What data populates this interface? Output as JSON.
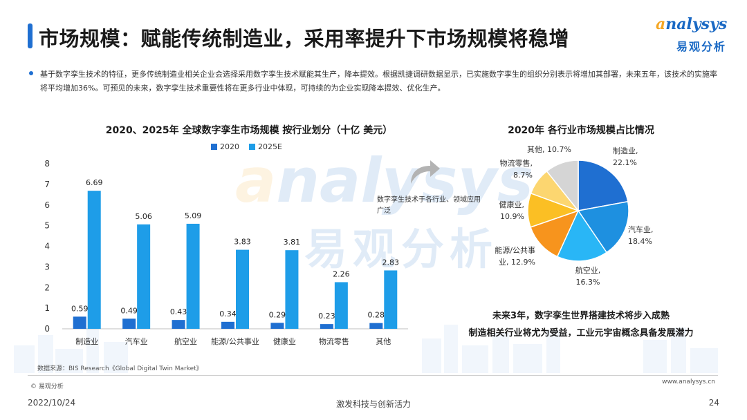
{
  "header": {
    "title": "市场规模：赋能传统制造业，采用率提升下市场规模将稳增"
  },
  "logo": {
    "brand_en_a": "a",
    "brand_en_rest": "nalysys",
    "brand_cn": "易观分析"
  },
  "intro": {
    "text": "基于数字孪生技术的特征，更多传统制造业相关企业会选择采用数字孪生技术赋能其生产，降本提效。根据凯捷调研数据显示，已实施数字孪生的组织分别表示将增加其部署，未来五年，该技术的实施率将平均增加36%。可预见的未来，数字孪生技术重要性将在更多行业中体现，可持续的为企业实现降本提效、优化生产。"
  },
  "chart_data": [
    {
      "type": "bar",
      "title": "2020、2025年 全球数字孪生市场规模 按行业划分（十亿 美元）",
      "categories": [
        "制造业",
        "汽车业",
        "航空业",
        "能源/公共事业",
        "健康业",
        "物流零售",
        "其他"
      ],
      "series": [
        {
          "name": "2020",
          "values": [
            0.59,
            0.49,
            0.43,
            0.34,
            0.29,
            0.23,
            0.28
          ],
          "color": "#1f6fd1"
        },
        {
          "name": "2025E",
          "values": [
            6.69,
            5.06,
            5.09,
            3.83,
            3.81,
            2.26,
            2.83
          ],
          "color": "#1e9de8"
        }
      ],
      "ylim": [
        0,
        8
      ],
      "yticks": [
        0,
        1,
        2,
        3,
        4,
        5,
        6,
        7,
        8
      ],
      "grid": false,
      "legend": "top-center"
    },
    {
      "type": "pie",
      "title": "2020年 各行业市场规模占比情况",
      "slices": [
        {
          "label": "制造业,",
          "value": 22.1,
          "text": "22.1%",
          "color": "#1f6fd1"
        },
        {
          "label": "汽车业,",
          "value": 18.4,
          "text": "18.4%",
          "color": "#1e90e0"
        },
        {
          "label": "航空业,",
          "value": 16.3,
          "text": "16.3%",
          "color": "#29b6f6"
        },
        {
          "label": "能源/公共事",
          "label2": "业, 12.9%",
          "value": 12.9,
          "text": "",
          "color": "#f7941d"
        },
        {
          "label": "健康业,",
          "value": 10.9,
          "text": "10.9%",
          "color": "#fbbf24"
        },
        {
          "label": "物流零售,",
          "value": 8.7,
          "text": "8.7%",
          "color": "#fcd670"
        },
        {
          "label": "其他, 10.7%",
          "value": 10.7,
          "text": "",
          "color": "#d5d5d5"
        }
      ]
    }
  ],
  "callout": {
    "text": "数字孪生技术于各行业、领域应用广泛"
  },
  "conclusion": {
    "line1": "未来3年，数字孪生世界搭建技术将步入成熟",
    "line2": "制造相关行业将尤为受益，工业元宇宙概念具备发展潜力"
  },
  "footer": {
    "source": "数据来源：BIS Research《Global Digital Twin Market》",
    "copyright": "© 易观分析",
    "website": "www.analysys.cn",
    "date": "2022/10/24",
    "slogan": "激发科技与创新活力",
    "page": "24"
  },
  "icons": {
    "arrow": "curved-arrow-icon",
    "bullet": "bullet-dot-icon"
  }
}
